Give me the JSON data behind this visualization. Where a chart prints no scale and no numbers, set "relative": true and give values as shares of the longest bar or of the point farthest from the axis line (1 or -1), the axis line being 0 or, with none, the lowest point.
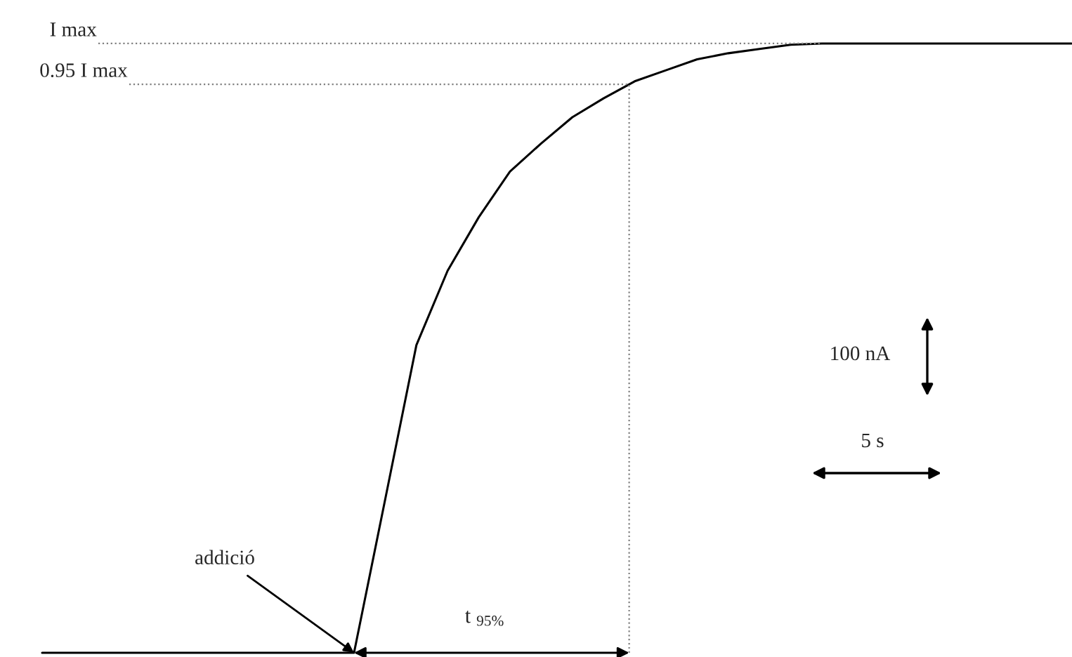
{
  "chart_data": {
    "type": "line",
    "relative": true,
    "categories": [
      null,
      null,
      null,
      null,
      null,
      null,
      null,
      null,
      null,
      null,
      null,
      null,
      null,
      null,
      null,
      null,
      null,
      null,
      null,
      null,
      null,
      null,
      null,
      null,
      null,
      null,
      null,
      null,
      null,
      null,
      null,
      null,
      null,
      null
    ],
    "series": [
      {
        "color": "#000000",
        "values": [
          0,
          0,
          0,
          0,
          0,
          0,
          0,
          0,
          0,
          0,
          0,
          0.252,
          0.505,
          0.627,
          0.715,
          0.79,
          0.836,
          0.879,
          0.91,
          0.938,
          0.956,
          0.974,
          0.984,
          0.991,
          0.998,
          1,
          1,
          1,
          1,
          1,
          1,
          1,
          1,
          1
        ]
      }
    ],
    "ref_lines": [
      {
        "axis": "y",
        "value": 1,
        "label": "I max",
        "color": "#808080",
        "line_style": "dotted"
      },
      {
        "axis": "y",
        "value": 0.933,
        "label": "0.95 I max",
        "color": "#808080",
        "line_style": "dotted"
      }
    ],
    "annotations": [
      "addició",
      "t $_{95%}$",
      "100 nA",
      "5 s"
    ],
    "marker": "none",
    "line_style": "solid"
  }
}
